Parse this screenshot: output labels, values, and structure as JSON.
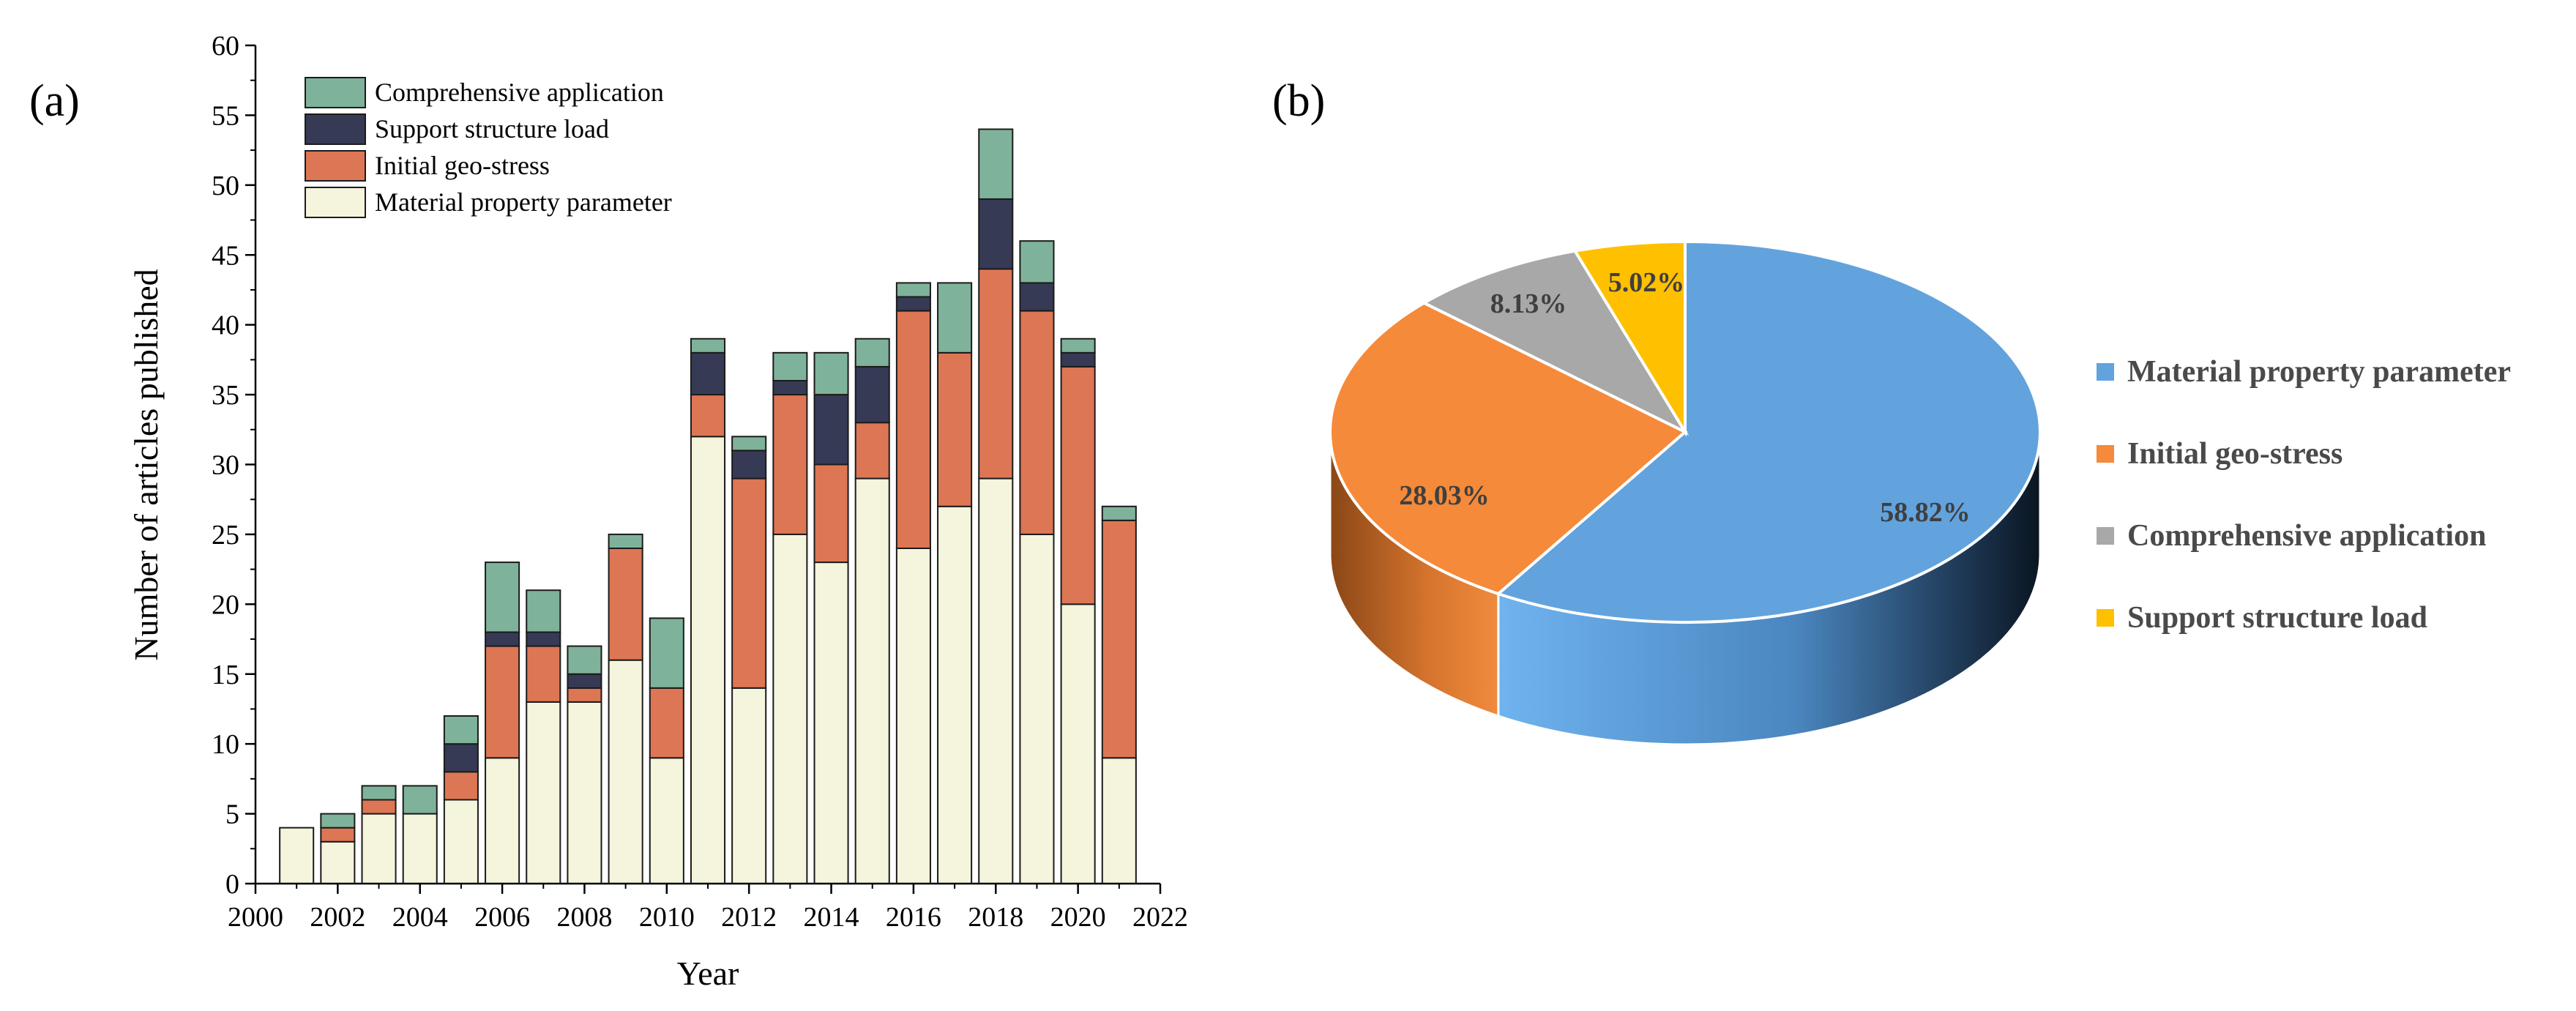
{
  "panels": {
    "a": {
      "label": "(a)"
    },
    "b": {
      "label": "(b)"
    }
  },
  "colors": {
    "material": "#f5f4dc",
    "initial": "#dd7654",
    "support": "#363a55",
    "comprehensive": "#7fb29a",
    "pie_material": "#62a3de",
    "pie_initial": "#f58a3a",
    "pie_comprehensive": "#a8a8a8",
    "pie_support": "#ffc000"
  },
  "chart_data": [
    {
      "type": "bar",
      "stacked": true,
      "title": "",
      "xlabel": "Year",
      "ylabel": "Number of articles published",
      "xlim": [
        2000,
        2022
      ],
      "ylim": [
        0,
        60
      ],
      "xticks": [
        2000,
        2002,
        2004,
        2006,
        2008,
        2010,
        2012,
        2014,
        2016,
        2018,
        2020,
        2022
      ],
      "yticks": [
        0,
        5,
        10,
        15,
        20,
        25,
        30,
        35,
        40,
        45,
        50,
        55,
        60
      ],
      "legend_position": "top-left",
      "legend_order": [
        "comprehensive",
        "support",
        "initial",
        "material"
      ],
      "categories": [
        2001,
        2002,
        2003,
        2004,
        2005,
        2006,
        2007,
        2008,
        2009,
        2010,
        2011,
        2012,
        2013,
        2014,
        2015,
        2016,
        2017,
        2018,
        2019,
        2020,
        2021
      ],
      "series": [
        {
          "key": "material",
          "name": "Material property parameter",
          "values": [
            4,
            3,
            5,
            5,
            6,
            9,
            13,
            13,
            16,
            9,
            32,
            14,
            25,
            23,
            29,
            24,
            27,
            29,
            25,
            20,
            9
          ]
        },
        {
          "key": "initial",
          "name": "Initial geo-stress",
          "values": [
            0,
            1,
            1,
            0,
            2,
            8,
            4,
            1,
            8,
            5,
            3,
            15,
            10,
            7,
            4,
            17,
            11,
            15,
            16,
            17,
            17
          ]
        },
        {
          "key": "support",
          "name": "Support structure load",
          "values": [
            0,
            0,
            0,
            0,
            2,
            1,
            1,
            1,
            0,
            0,
            3,
            2,
            1,
            5,
            4,
            1,
            0,
            5,
            2,
            1,
            0
          ]
        },
        {
          "key": "comprehensive",
          "name": "Comprehensive application",
          "values": [
            0,
            1,
            1,
            2,
            2,
            5,
            3,
            2,
            1,
            5,
            1,
            1,
            2,
            3,
            2,
            1,
            5,
            5,
            3,
            1,
            1
          ]
        }
      ]
    },
    {
      "type": "pie",
      "title": "",
      "style": "3d",
      "legend_position": "right",
      "slices": [
        {
          "key": "material",
          "name": "Material property parameter",
          "value": 58.82,
          "label": "58.82%"
        },
        {
          "key": "initial",
          "name": "Initial geo-stress",
          "value": 28.03,
          "label": "28.03%"
        },
        {
          "key": "comprehensive",
          "name": "Comprehensive application",
          "value": 8.13,
          "label": "8.13%"
        },
        {
          "key": "support",
          "name": "Support structure load",
          "value": 5.02,
          "label": "5.02%"
        }
      ]
    }
  ]
}
